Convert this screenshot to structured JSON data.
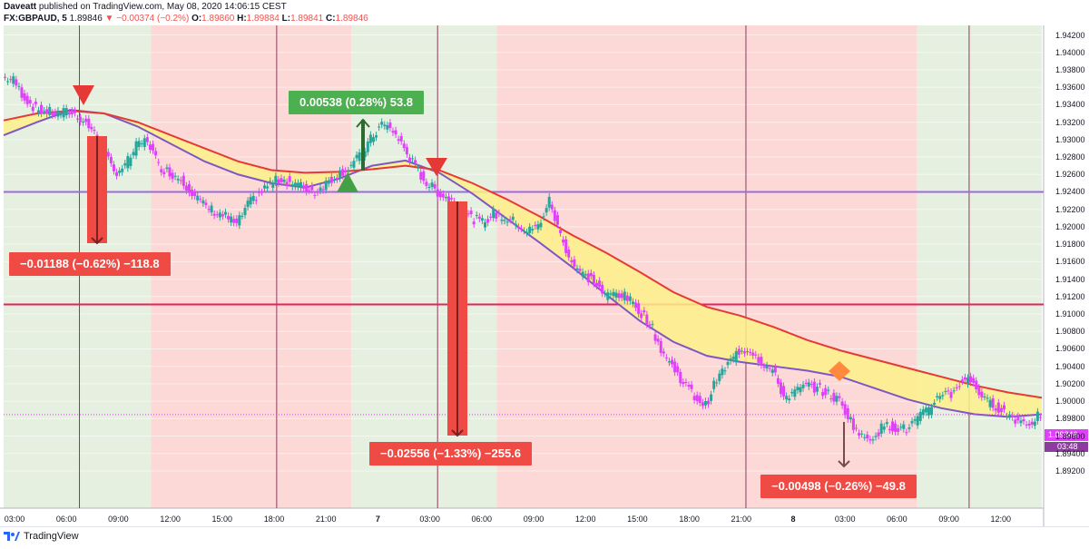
{
  "header": {
    "publisher_line": "Daveatt published on TradingView.com, May 08, 2020 14:06:15 CEST",
    "publisher_name": "Daveatt",
    "publisher_rest": " published on TradingView.com, May 08, 2020 14:06:15 CEST",
    "symbol": "FX:GBPAUD, 5",
    "last": "1.89846",
    "change": "▼ −0.00374 (−0.2%)",
    "o_label": "O:",
    "o_value": "1.89860",
    "h_label": "H:",
    "h_value": "1.89884",
    "l_label": "L:",
    "l_value": "1.89841",
    "c_label": "C:",
    "c_value": "1.89846"
  },
  "chart_data": {
    "type": "candlestick",
    "symbol": "GBPAUD",
    "timeframe": "5",
    "ylim": [
      1.89,
      1.943
    ],
    "y_ticks": [
      "1.94200",
      "1.94000",
      "1.93800",
      "1.93600",
      "1.93400",
      "1.93200",
      "1.93000",
      "1.92800",
      "1.92600",
      "1.92400",
      "1.92200",
      "1.92000",
      "1.91800",
      "1.91600",
      "1.91400",
      "1.91200",
      "1.91000",
      "1.90800",
      "1.90600",
      "1.90400",
      "1.90200",
      "1.90000",
      "1.89800",
      "1.89600",
      "1.89400",
      "1.89200"
    ],
    "x_ticks": [
      {
        "label": "03:00",
        "bold": false
      },
      {
        "label": "06:00",
        "bold": false
      },
      {
        "label": "09:00",
        "bold": false
      },
      {
        "label": "12:00",
        "bold": false
      },
      {
        "label": "15:00",
        "bold": false
      },
      {
        "label": "18:00",
        "bold": false
      },
      {
        "label": "21:00",
        "bold": false
      },
      {
        "label": "7",
        "bold": true
      },
      {
        "label": "03:00",
        "bold": false
      },
      {
        "label": "06:00",
        "bold": false
      },
      {
        "label": "09:00",
        "bold": false
      },
      {
        "label": "12:00",
        "bold": false
      },
      {
        "label": "15:00",
        "bold": false
      },
      {
        "label": "18:00",
        "bold": false
      },
      {
        "label": "21:00",
        "bold": false
      },
      {
        "label": "8",
        "bold": true
      },
      {
        "label": "03:00",
        "bold": false
      },
      {
        "label": "06:00",
        "bold": false
      },
      {
        "label": "09:00",
        "bold": false
      },
      {
        "label": "12:00",
        "bold": false
      }
    ],
    "price_path": [
      1.9372,
      1.9368,
      1.9348,
      1.9335,
      1.9332,
      1.933,
      1.9332,
      1.9325,
      1.9312,
      1.9288,
      1.9262,
      1.927,
      1.9292,
      1.93,
      1.927,
      1.9262,
      1.9255,
      1.924,
      1.9225,
      1.9218,
      1.9212,
      1.9202,
      1.9225,
      1.9238,
      1.925,
      1.9255,
      1.925,
      1.9245,
      1.924,
      1.925,
      1.926,
      1.9268,
      1.928,
      1.93,
      1.9318,
      1.931,
      1.929,
      1.9268,
      1.925,
      1.924,
      1.9232,
      1.9222,
      1.921,
      1.9205,
      1.9215,
      1.921,
      1.9205,
      1.9195,
      1.92,
      1.923,
      1.919,
      1.916,
      1.9145,
      1.9138,
      1.912,
      1.9125,
      1.9118,
      1.9105,
      1.909,
      1.906,
      1.904,
      1.9022,
      1.9005,
      1.8995,
      1.9025,
      1.9042,
      1.9058,
      1.906,
      1.9045,
      1.9035,
      1.9005,
      1.901,
      1.9018,
      1.9015,
      1.9008,
      1.9,
      1.8978,
      1.8958,
      1.896,
      1.8972,
      1.897,
      1.8968,
      1.898,
      1.899,
      1.901,
      1.9008,
      1.9025,
      1.9022,
      1.9,
      1.8995,
      1.8985,
      1.8978,
      1.8975,
      1.8985
    ],
    "ma_fast": [
      1.9322,
      1.933,
      1.9333,
      1.933,
      1.932,
      1.9305,
      1.929,
      1.9275,
      1.9265,
      1.9262,
      1.9263,
      1.9266,
      1.927,
      1.9265,
      1.925,
      1.9232,
      1.9212,
      1.919,
      1.917,
      1.9148,
      1.9125,
      1.9108,
      1.9098,
      1.9085,
      1.907,
      1.9058,
      1.9048,
      1.9038,
      1.9028,
      1.9018,
      1.901,
      1.9004
    ],
    "ma_slow": [
      1.9305,
      1.932,
      1.9334,
      1.933,
      1.9315,
      1.9295,
      1.9275,
      1.926,
      1.925,
      1.9245,
      1.9255,
      1.927,
      1.9276,
      1.9262,
      1.9238,
      1.921,
      1.9182,
      1.9153,
      1.9122,
      1.9092,
      1.9068,
      1.9052,
      1.9045,
      1.904,
      1.9035,
      1.9028,
      1.9015,
      1.9002,
      1.8992,
      1.8985,
      1.8982,
      1.8985
    ],
    "horizontal_lines": [
      {
        "price": 1.924,
        "color": "#9c6ade"
      },
      {
        "price": 1.9111,
        "color": "#e91e63"
      }
    ],
    "last_price_line": {
      "price": 1.89846,
      "color": "#e040fb"
    },
    "sessions": [
      {
        "from": 0,
        "to": 0.142,
        "bg": "#e6f0e1"
      },
      {
        "from": 0.142,
        "to": 0.335,
        "bg": "#fcd9d6"
      },
      {
        "from": 0.335,
        "to": 0.475,
        "bg": "#e6f0e1"
      },
      {
        "from": 0.475,
        "to": 0.88,
        "bg": "#fcd9d6"
      },
      {
        "from": 0.88,
        "to": 1,
        "bg": "#e6f0e1"
      }
    ],
    "trades": [
      {
        "label": "−0.01188 (−0.62%) −118.8",
        "type": "short"
      },
      {
        "label": "0.00538 (0.28%) 53.8",
        "type": "long"
      },
      {
        "label": "−0.02556 (−1.33%) −255.6",
        "type": "short"
      },
      {
        "label": "−0.00498 (−0.26%) −49.8",
        "type": "short"
      }
    ],
    "price_tag": "1.89846",
    "countdown": "03:48"
  },
  "footer": {
    "brand": "TradingView"
  },
  "colors": {
    "bull": "#26a69a",
    "bear": "#e040fb",
    "fast_ma": "#e53935",
    "slow_ma": "#7e57c2",
    "fill": "#fdf08a",
    "tag_red": "#ef4a43",
    "tag_green": "#4caf50"
  }
}
